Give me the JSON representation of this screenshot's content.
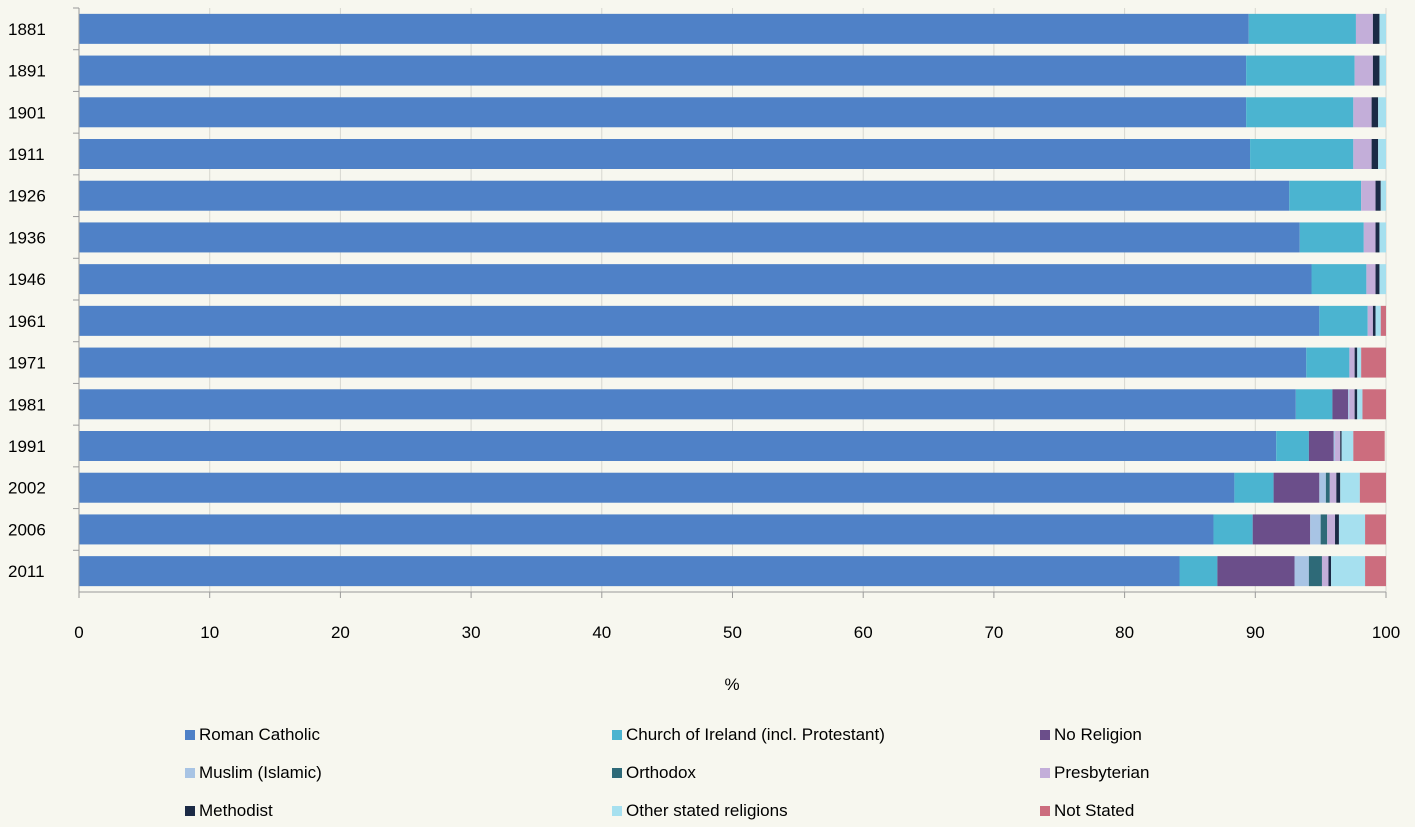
{
  "chart_data": {
    "type": "bar",
    "orientation": "horizontal",
    "stacked": true,
    "categories": [
      "1881",
      "1891",
      "1901",
      "1911",
      "1926",
      "1936",
      "1946",
      "1961",
      "1971",
      "1981",
      "1991",
      "2002",
      "2006",
      "2011"
    ],
    "xlabel": "%",
    "xlim": [
      0,
      100
    ],
    "xticks": [
      "0",
      "10",
      "20",
      "30",
      "40",
      "50",
      "60",
      "70",
      "80",
      "90",
      "100"
    ],
    "grid": true,
    "legend_position": "bottom",
    "series": [
      {
        "name": "Roman Catholic",
        "color": "#4f81c7",
        "values": [
          89.5,
          89.3,
          89.3,
          89.6,
          92.6,
          93.4,
          94.3,
          94.9,
          93.9,
          93.1,
          91.6,
          88.4,
          86.8,
          84.2
        ]
      },
      {
        "name": "Church of Ireland (incl. Protestant)",
        "color": "#4bb4d0",
        "values": [
          8.2,
          8.3,
          8.2,
          7.9,
          5.5,
          4.9,
          4.2,
          3.7,
          3.3,
          2.8,
          2.5,
          3.0,
          3.0,
          2.9
        ]
      },
      {
        "name": "No Religion",
        "color": "#6b4e8a",
        "values": [
          0,
          0,
          0,
          0,
          0,
          0,
          0,
          0,
          0,
          1.2,
          1.9,
          3.5,
          4.4,
          5.9
        ]
      },
      {
        "name": "Muslim (Islamic)",
        "color": "#a8c4e4",
        "values": [
          0,
          0,
          0,
          0,
          0,
          0,
          0,
          0,
          0,
          0.1,
          0.1,
          0.5,
          0.8,
          1.1
        ]
      },
      {
        "name": "Orthodox",
        "color": "#2e6a78",
        "values": [
          0,
          0,
          0,
          0,
          0,
          0,
          0,
          0,
          0,
          0,
          0,
          0.3,
          0.5,
          1.0
        ]
      },
      {
        "name": "Presbyterian",
        "color": "#c3aed9",
        "values": [
          1.3,
          1.4,
          1.4,
          1.4,
          1.1,
          0.9,
          0.7,
          0.4,
          0.4,
          0.4,
          0.4,
          0.5,
          0.6,
          0.5
        ]
      },
      {
        "name": "Methodist",
        "color": "#1b2a45",
        "values": [
          0.5,
          0.5,
          0.5,
          0.5,
          0.4,
          0.3,
          0.3,
          0.2,
          0.2,
          0.2,
          0.1,
          0.3,
          0.3,
          0.2
        ]
      },
      {
        "name": "Other stated religions",
        "color": "#a6e0ef",
        "values": [
          0.5,
          0.5,
          0.6,
          0.6,
          0.4,
          0.5,
          0.5,
          0.4,
          0.3,
          0.4,
          0.9,
          1.5,
          2.0,
          2.6
        ]
      },
      {
        "name": "Not Stated",
        "color": "#cc6d7e",
        "values": [
          0,
          0,
          0,
          0,
          0,
          0,
          0,
          0.4,
          1.9,
          1.9,
          2.4,
          2.0,
          1.6,
          1.6
        ]
      }
    ]
  }
}
